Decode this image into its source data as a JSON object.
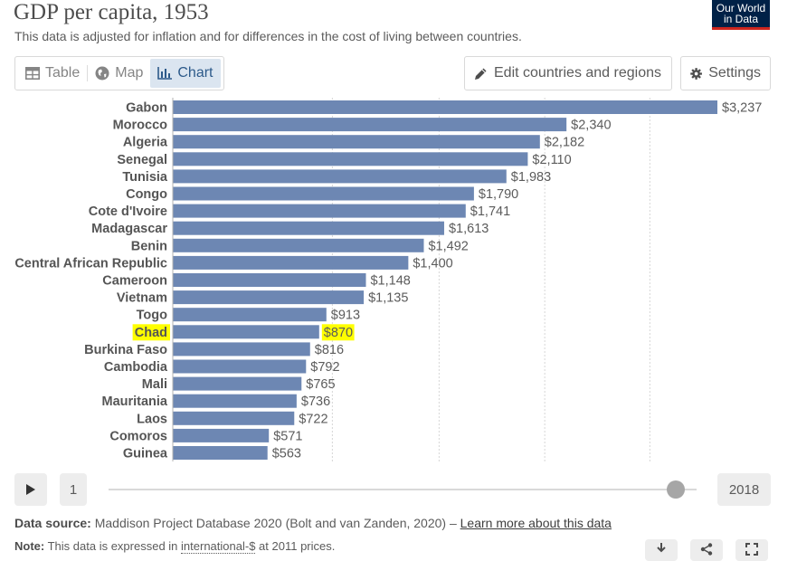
{
  "header": {
    "title": "GDP per capita, 1953",
    "subtitle": "This data is adjusted for inflation and for differences in the cost of living between countries.",
    "logo_line1": "Our World",
    "logo_line2": "in Data"
  },
  "tabs": [
    {
      "label": "Table",
      "icon": "table-icon",
      "active": false
    },
    {
      "label": "Map",
      "icon": "globe-icon",
      "active": false
    },
    {
      "label": "Chart",
      "icon": "bar-chart-icon",
      "active": true
    }
  ],
  "controls": {
    "edit_label": "Edit countries and regions",
    "settings_label": "Settings"
  },
  "colors": {
    "bar": "#6d87b3",
    "highlight": "#ffff00",
    "brand": "#002147",
    "brand_accent": "#ce261e"
  },
  "chart_data": {
    "type": "bar",
    "orientation": "horizontal",
    "title": "GDP per capita, 1953",
    "categories": [
      "Gabon",
      "Morocco",
      "Algeria",
      "Senegal",
      "Tunisia",
      "Congo",
      "Cote d'Ivoire",
      "Madagascar",
      "Benin",
      "Central African Republic",
      "Cameroon",
      "Vietnam",
      "Togo",
      "Chad",
      "Burkina Faso",
      "Cambodia",
      "Mali",
      "Mauritania",
      "Laos",
      "Comoros",
      "Guinea"
    ],
    "values": [
      3237,
      2340,
      2182,
      2110,
      1983,
      1790,
      1741,
      1613,
      1492,
      1400,
      1148,
      1135,
      913,
      870,
      816,
      792,
      765,
      736,
      722,
      571,
      563
    ],
    "value_labels": [
      "$3,237",
      "$2,340",
      "$2,182",
      "$2,110",
      "$1,983",
      "$1,790",
      "$1,741",
      "$1,613",
      "$1,492",
      "$1,400",
      "$1,148",
      "$1,135",
      "$913",
      "$870",
      "$816",
      "$792",
      "$765",
      "$736",
      "$722",
      "$571",
      "$563"
    ],
    "highlighted": "Chad",
    "xlim": [
      0,
      3237
    ],
    "grid": true
  },
  "timeline": {
    "start_label": "1",
    "end_label": "2018",
    "position": 0.97
  },
  "footer": {
    "source_label": "Data source:",
    "source_text": "Maddison Project Database 2020 (Bolt and van Zanden, 2020) –",
    "source_link": "Learn more about this data",
    "note_label": "Note:",
    "note_text_1": "This data is expressed in",
    "note_link": "international-$",
    "note_text_2": "at 2011 prices."
  }
}
